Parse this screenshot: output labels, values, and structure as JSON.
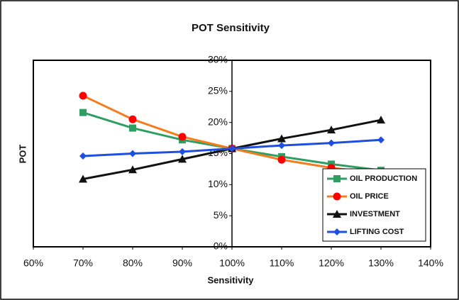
{
  "chart_data": {
    "type": "line",
    "title": "POT Sensitivity",
    "x_label": "Sensitivity",
    "y_label": "POT",
    "x": [
      70,
      80,
      90,
      100,
      110,
      120,
      130
    ],
    "series": [
      {
        "name": "OIL PRODUCTION",
        "color": "#2e9e63",
        "marker": "square",
        "values": [
          21.6,
          19.1,
          17.2,
          15.8,
          14.5,
          13.3,
          12.3
        ]
      },
      {
        "name": "OIL PRICE",
        "color": "#f47c20",
        "marker": "circle",
        "values": [
          24.3,
          20.5,
          17.7,
          15.8,
          14.0,
          12.7,
          11.8
        ]
      },
      {
        "name": "INVESTMENT",
        "color": "#111111",
        "marker": "triangle",
        "values": [
          10.9,
          12.4,
          14.1,
          15.8,
          17.4,
          18.8,
          20.4
        ]
      },
      {
        "name": "LIFTING COST",
        "color": "#1f4fe0",
        "marker": "diamond",
        "values": [
          14.6,
          15.0,
          15.3,
          15.8,
          16.3,
          16.7,
          17.2
        ]
      }
    ],
    "xlim": [
      60,
      140
    ],
    "xticks": [
      {
        "value": 60,
        "label": "60%"
      },
      {
        "value": 70,
        "label": "70%"
      },
      {
        "value": 80,
        "label": "80%"
      },
      {
        "value": 90,
        "label": "90%"
      },
      {
        "value": 100,
        "label": "100%"
      },
      {
        "value": 110,
        "label": "110%"
      },
      {
        "value": 120,
        "label": "120%"
      },
      {
        "value": 130,
        "label": "130%"
      },
      {
        "value": 140,
        "label": "140%"
      }
    ],
    "ylim": [
      0,
      30
    ],
    "yticks": [
      {
        "value": 0,
        "label": "0%"
      },
      {
        "value": 5,
        "label": "5%"
      },
      {
        "value": 10,
        "label": "10%"
      },
      {
        "value": 15,
        "label": "15%"
      },
      {
        "value": 20,
        "label": "20%"
      },
      {
        "value": 25,
        "label": "25%"
      },
      {
        "value": 30,
        "label": "30%"
      }
    ],
    "y_axis_at_x": 100,
    "legend": "lower right"
  }
}
